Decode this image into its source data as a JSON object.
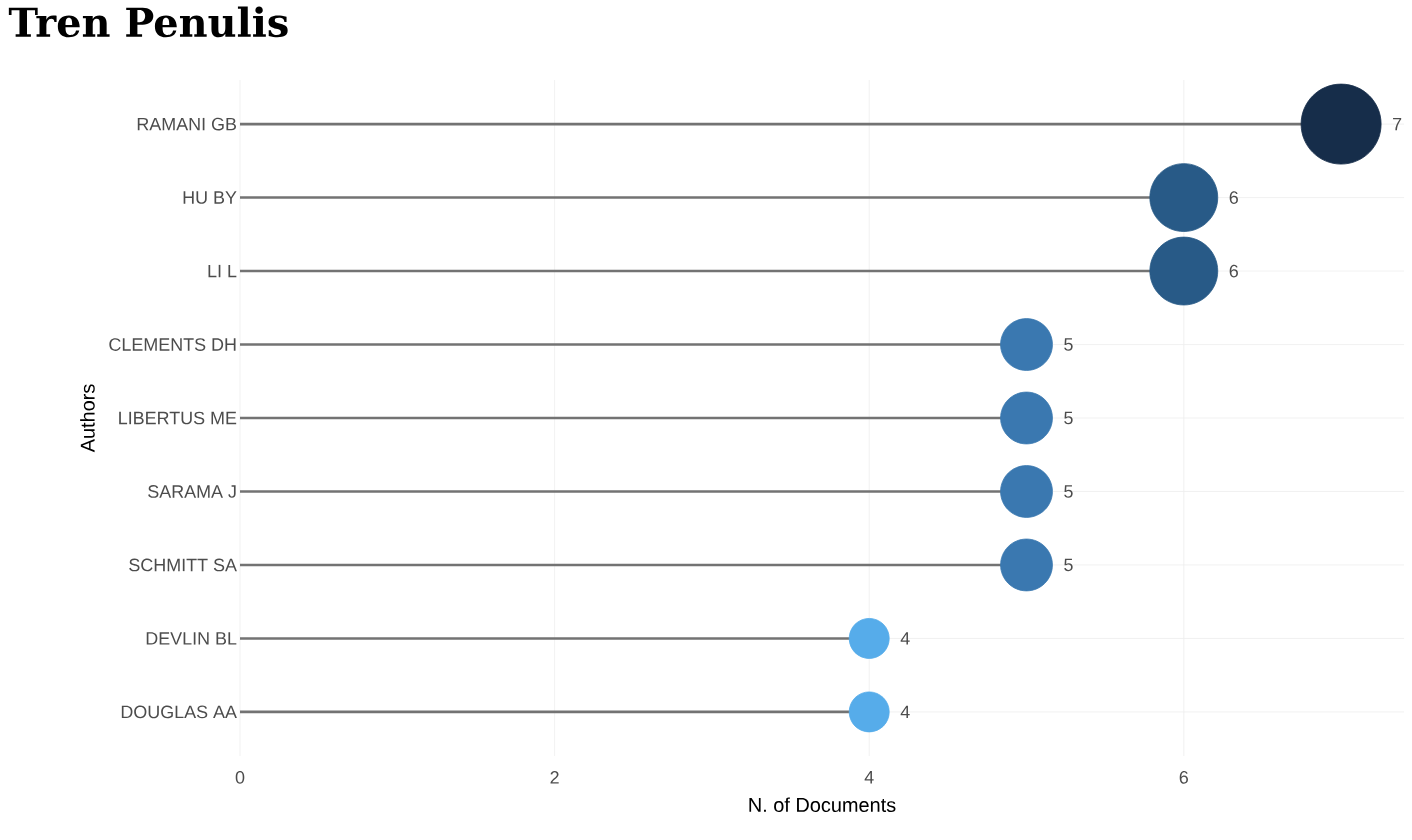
{
  "chart_data": {
    "type": "lollipop",
    "orientation": "horizontal",
    "title": "Tren Penulis",
    "xlabel": "N. of Documents",
    "ylabel": "Authors",
    "categories": [
      "RAMANI GB",
      "HU BY",
      "LI L",
      "CLEMENTS DH",
      "LIBERTUS ME",
      "SARAMA J",
      "SCHMITT SA",
      "DEVLIN BL",
      "DOUGLAS AA"
    ],
    "values": [
      7,
      6,
      6,
      5,
      5,
      5,
      5,
      4,
      4
    ],
    "sizes": [
      1,
      0.72,
      0.72,
      0.42,
      0.42,
      0.42,
      0.42,
      0.25,
      0.25
    ],
    "colors": [
      "#162d4a",
      "#285a87",
      "#285a87",
      "#3a78b0",
      "#3a78b0",
      "#3a78b0",
      "#3a78b0",
      "#56acea",
      "#56acea"
    ],
    "xlim": [
      0,
      7.4
    ],
    "xticks": [
      0,
      2,
      4,
      6
    ],
    "grid": true,
    "data_labels": true,
    "marker": "circle"
  }
}
